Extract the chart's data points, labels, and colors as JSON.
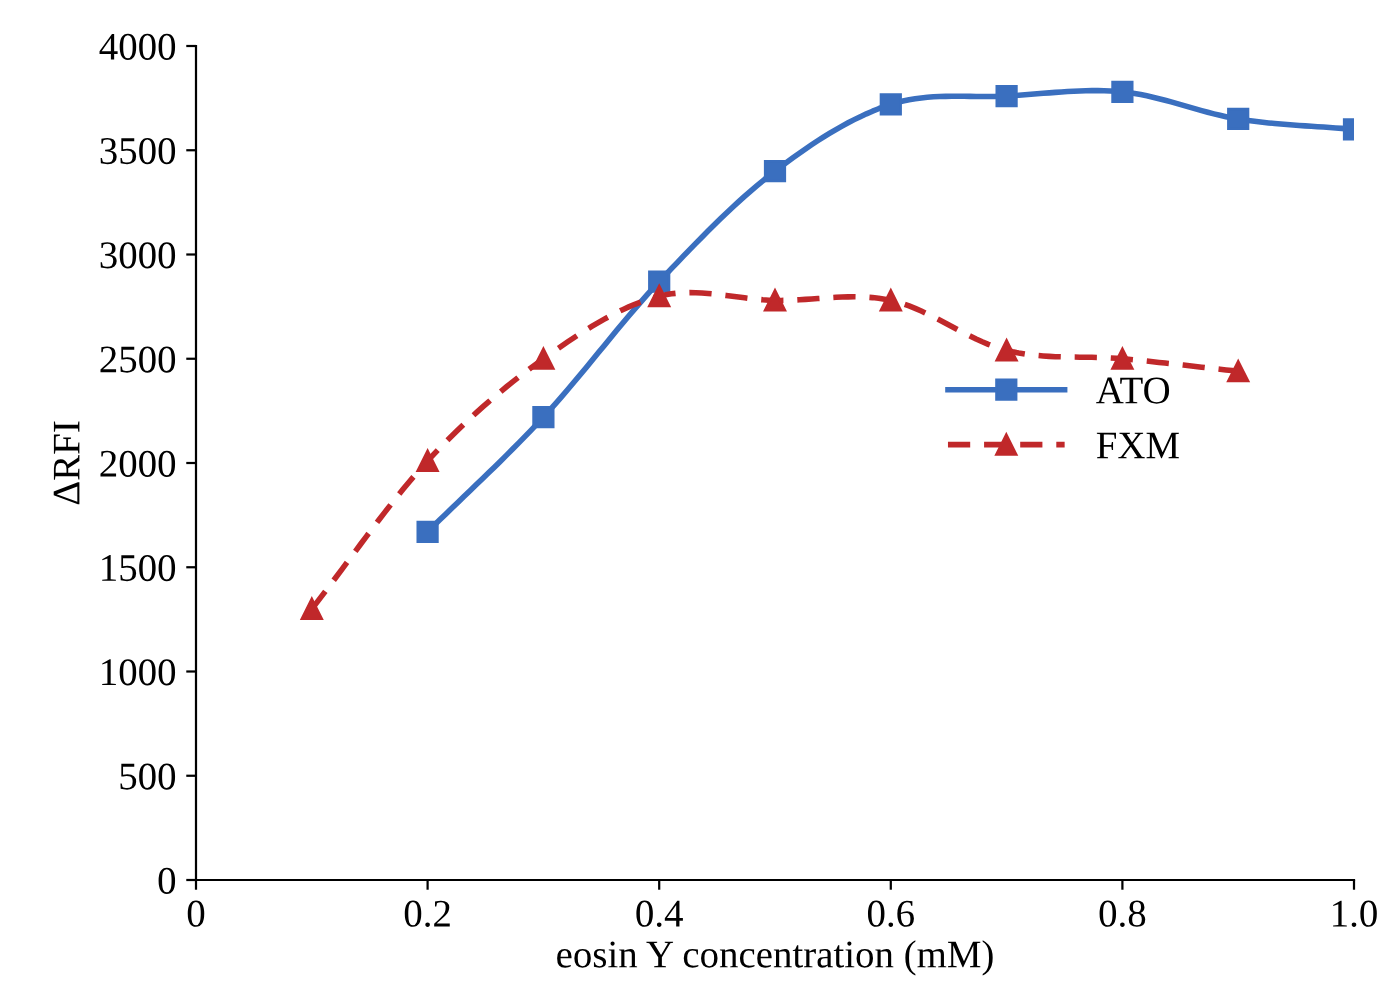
{
  "chart_data": {
    "type": "line",
    "xlabel": "eosin Y concentration (mM)",
    "ylabel": "ΔRFI",
    "series": [
      {
        "name": "ATO",
        "color": "#3a6fbf",
        "x": [
          0.2,
          0.3,
          0.4,
          0.5,
          0.6,
          0.7,
          0.8,
          0.9,
          1.0
        ],
        "values": [
          1670,
          2220,
          2870,
          3400,
          3720,
          3760,
          3780,
          3650,
          3600
        ],
        "marker": "square",
        "line_style": "solid"
      },
      {
        "name": "FXM",
        "color": "#c0282a",
        "x": [
          0.1,
          0.2,
          0.3,
          0.4,
          0.5,
          0.6,
          0.7,
          0.8,
          0.9
        ],
        "values": [
          1300,
          2010,
          2500,
          2800,
          2780,
          2780,
          2540,
          2500,
          2440
        ],
        "marker": "triangle",
        "line_style": "dashed"
      }
    ],
    "xlim": [
      0,
      1.0
    ],
    "xticks": [
      0,
      0.2,
      0.4,
      0.6,
      0.8,
      {
        "value": 1.0,
        "label": "1.0"
      }
    ],
    "ylim": [
      0,
      4000
    ],
    "yticks": [
      0,
      500,
      1000,
      1500,
      2000,
      2500,
      3000,
      3500,
      4000
    ],
    "grid": false,
    "legend": "center right"
  }
}
